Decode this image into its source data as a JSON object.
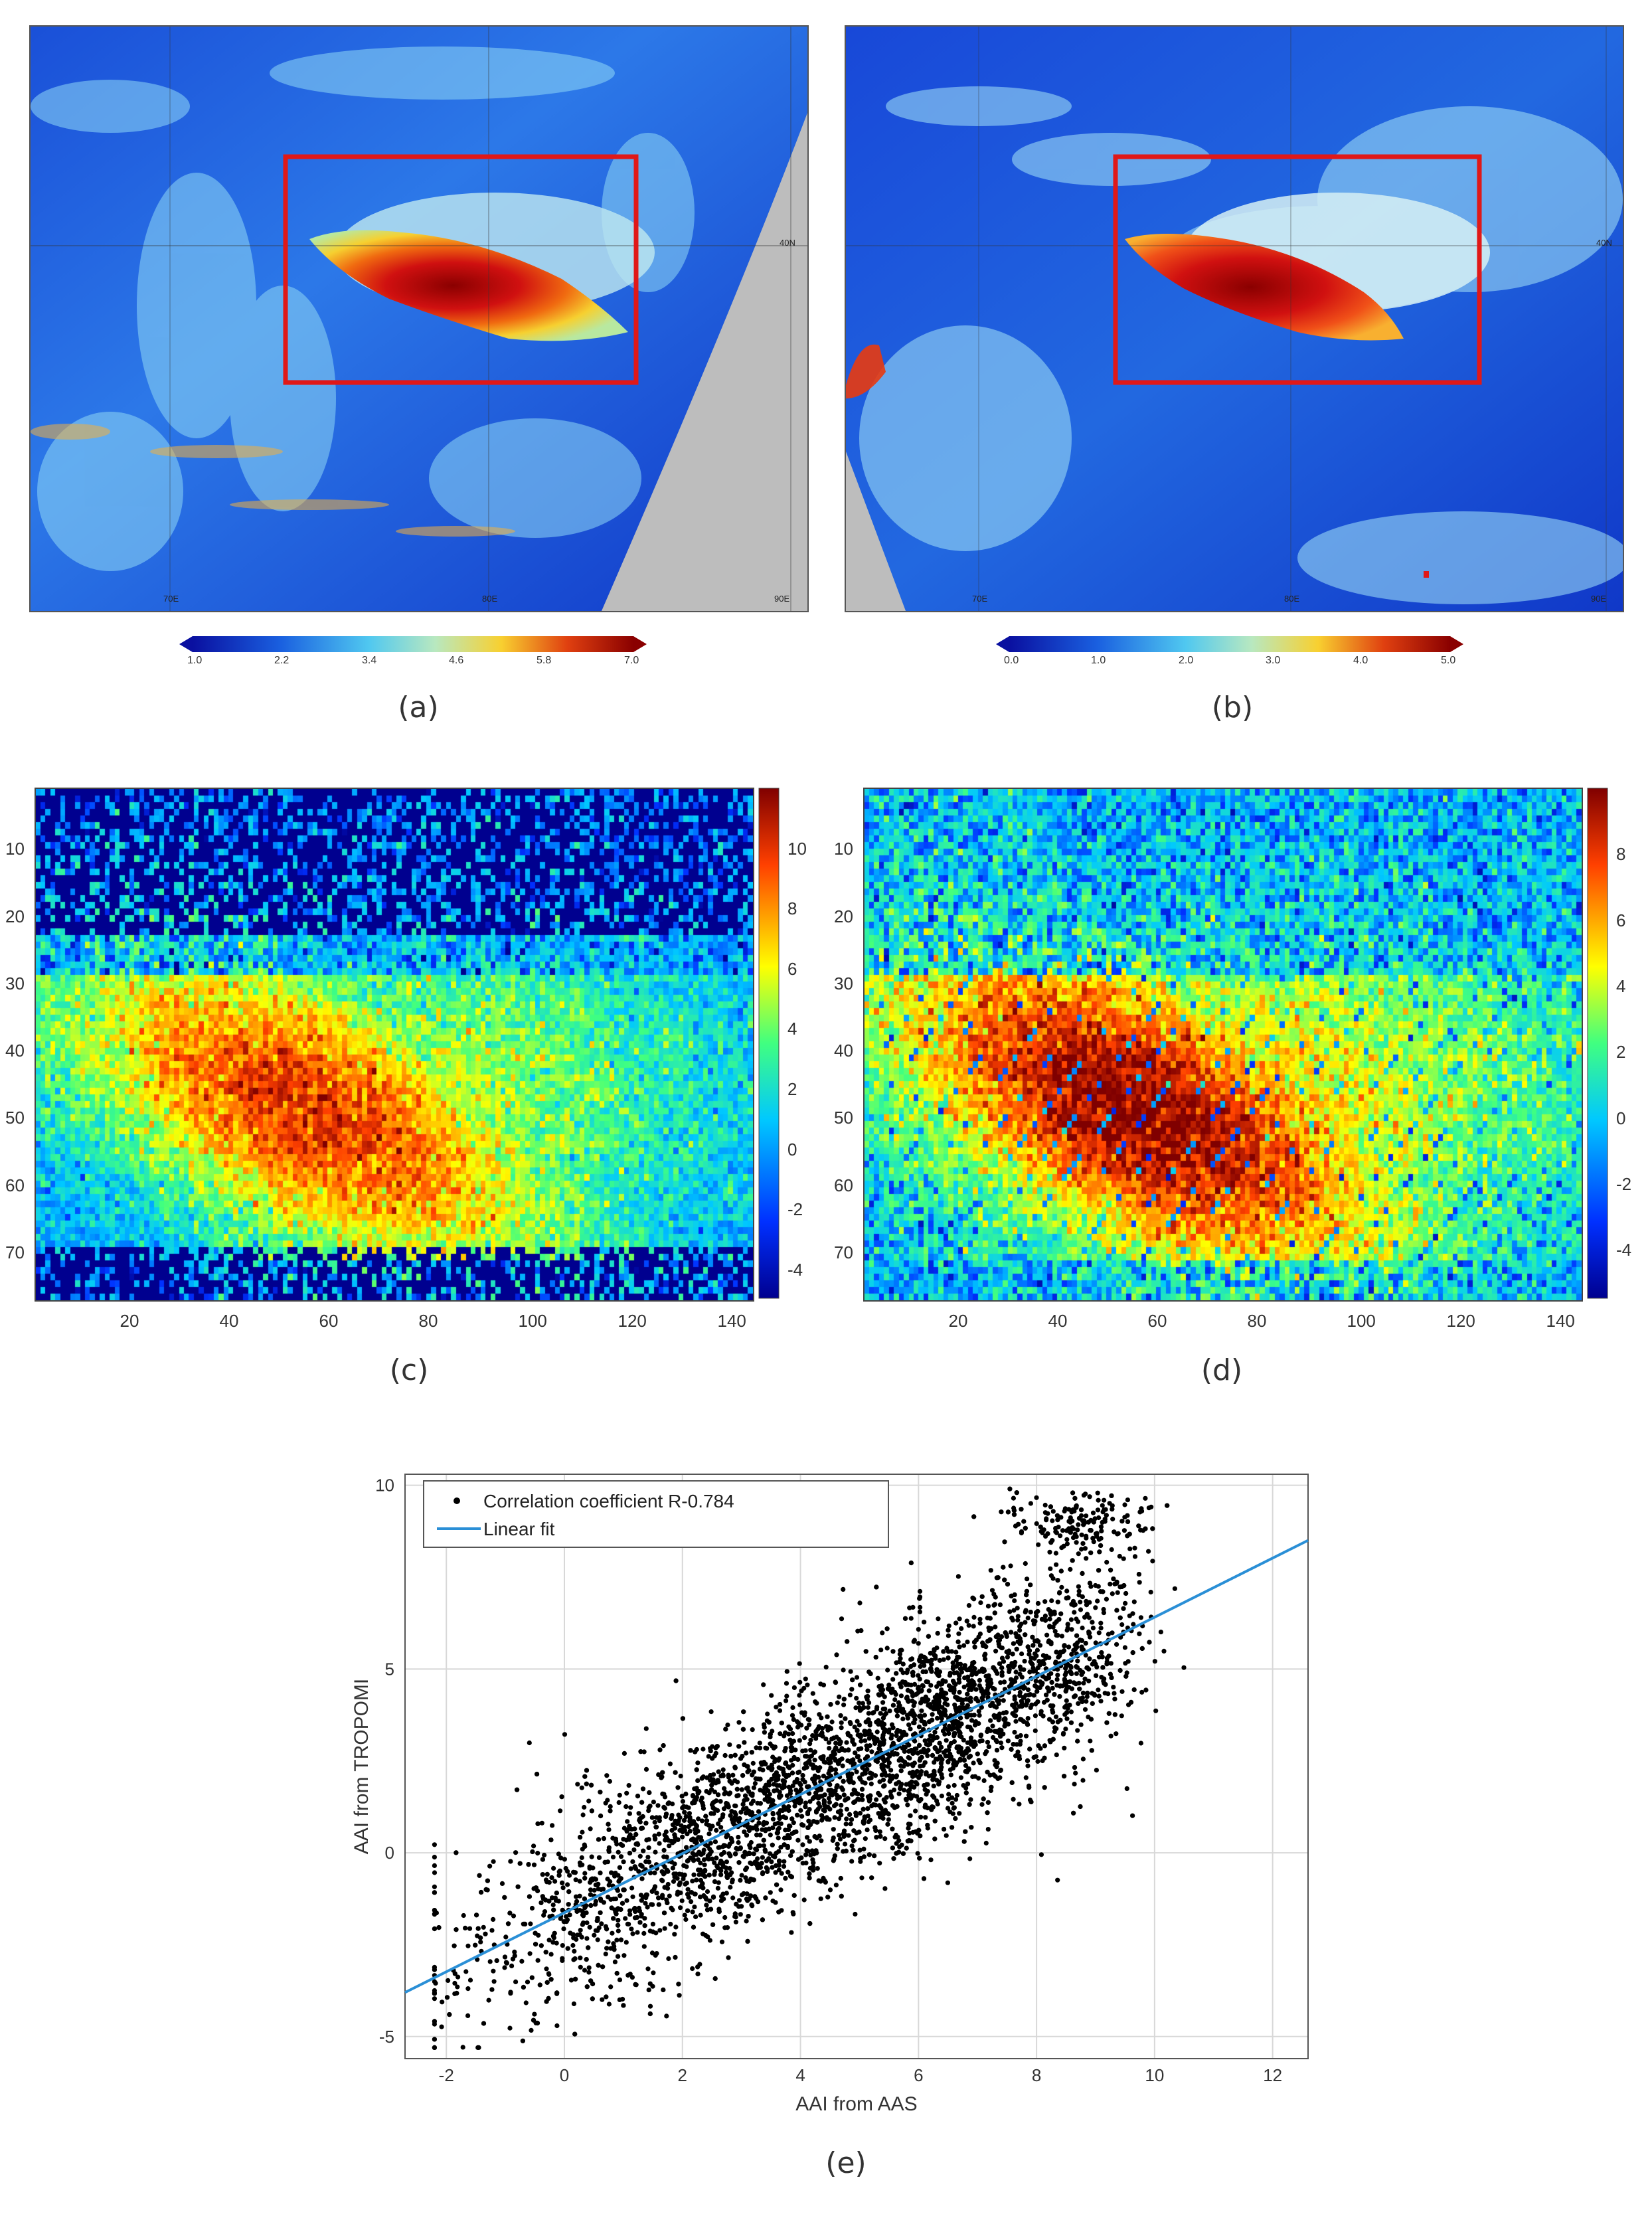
{
  "captions": {
    "a": "(a)",
    "b": "(b)",
    "c": "(c)",
    "d": "(d)",
    "e": "(e)"
  },
  "map_a": {
    "colorbar_ticks": [
      "1.0",
      "2.2",
      "3.4",
      "4.6",
      "5.8",
      "7.0"
    ],
    "labels": {
      "lat": "40N",
      "lon1": "70E",
      "lon2": "80E",
      "lon3": "90E"
    }
  },
  "map_b": {
    "colorbar_ticks": [
      "0.0",
      "1.0",
      "2.0",
      "3.0",
      "4.0",
      "5.0"
    ],
    "labels": {
      "lat": "40N",
      "lon1": "70E",
      "lon2": "80E",
      "lon3": "90E"
    }
  },
  "colors": {
    "box": "#e01818",
    "land": "#1038c8",
    "swath_gap": "#bdbdbd",
    "point": "#000000",
    "fit": "#2a8fd6"
  },
  "chart_data": [
    {
      "type": "heatmap",
      "panel": "c",
      "xticks": [
        "20",
        "40",
        "60",
        "80",
        "100",
        "120",
        "140"
      ],
      "yticks": [
        "10",
        "20",
        "30",
        "40",
        "50",
        "60",
        "70"
      ],
      "colorbar_ticks": [
        "10",
        "8",
        "6",
        "4",
        "2",
        "0",
        "-2",
        "-4"
      ],
      "xlim": [
        1,
        145
      ],
      "ylim": [
        1,
        77
      ],
      "clim": [
        -5,
        12
      ]
    },
    {
      "type": "heatmap",
      "panel": "d",
      "xticks": [
        "20",
        "40",
        "60",
        "80",
        "100",
        "120",
        "140"
      ],
      "yticks": [
        "10",
        "20",
        "30",
        "40",
        "50",
        "60",
        "70"
      ],
      "colorbar_ticks": [
        "8",
        "6",
        "4",
        "2",
        "0",
        "-2",
        "-4"
      ],
      "xlim": [
        1,
        145
      ],
      "ylim": [
        1,
        77
      ],
      "clim": [
        -5.5,
        10
      ]
    },
    {
      "type": "scatter",
      "panel": "e",
      "xlabel": "AAI from AAS",
      "ylabel": "AAI from TROPOMI",
      "xlim": [
        -2.7,
        12.6
      ],
      "ylim": [
        -5.6,
        10.3
      ],
      "xticks": [
        "-2",
        "0",
        "2",
        "4",
        "6",
        "8",
        "10",
        "12"
      ],
      "yticks": [
        "10",
        "5",
        "0",
        "-5"
      ],
      "grid": true,
      "legend_position": "top-left",
      "series": [
        {
          "name": "Correlation coefficient R-0.784",
          "kind": "points",
          "n_points": 5000
        },
        {
          "name": "Linear fit",
          "kind": "line",
          "x": [
            -2.7,
            12.6
          ],
          "y": [
            -3.8,
            8.5
          ]
        }
      ]
    }
  ]
}
